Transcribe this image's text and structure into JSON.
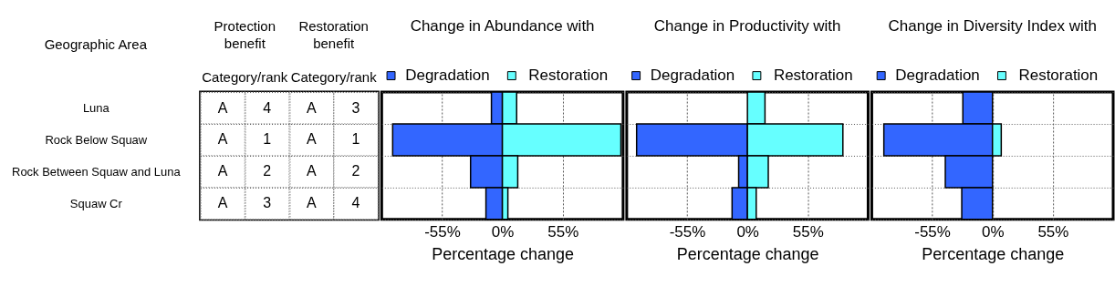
{
  "chart_data": [
    {
      "type": "heatmap",
      "categories": [
        null,
        null,
        null,
        null
      ],
      "y_categories": [
        "Luna",
        "Rock Below Squaw",
        "Rock Between Squaw and Luna",
        "Squaw Cr"
      ],
      "cells": [
        [
          null,
          null,
          null,
          null
        ],
        [
          null,
          null,
          null,
          null
        ],
        [
          null,
          null,
          null,
          null
        ],
        [
          null,
          null,
          null,
          null
        ]
      ],
      "cell_labels": [
        [
          "A",
          "4",
          "A",
          "3"
        ],
        [
          "A",
          "1",
          "A",
          "1"
        ],
        [
          "A",
          "2",
          "A",
          "2"
        ],
        [
          "A",
          "3",
          "A",
          "4"
        ]
      ],
      "annotations": [
        "Geographic Area",
        "Protection benefit",
        "Category/rank",
        "Restoration benefit",
        "Category/rank"
      ]
    },
    {
      "type": "bar",
      "orientation": "horizontal",
      "stacked": true,
      "title": "Change in Abundance with",
      "legend": "top",
      "xlabel": "Percentage change",
      "categories": [
        null,
        null,
        null,
        null
      ],
      "series": [
        {
          "name": "Degradation",
          "color": "#3366ff",
          "values": [
            -10,
            -100,
            -29,
            -15
          ]
        },
        {
          "name": "Restoration",
          "color": "#66ffff",
          "values": [
            13,
            108,
            14,
            5
          ]
        }
      ],
      "xlim": [
        -110,
        110
      ],
      "xticks": [
        {
          "value": -55,
          "label": "-55%"
        },
        {
          "value": 0,
          "label": "0%"
        },
        {
          "value": 55,
          "label": "55%"
        }
      ],
      "grid": true,
      "tick_labels": "x"
    },
    {
      "type": "bar",
      "orientation": "horizontal",
      "stacked": true,
      "title": "Change in Productivity with",
      "legend": "top",
      "xlabel": "Percentage change",
      "categories": [
        null,
        null,
        null,
        null
      ],
      "series": [
        {
          "name": "Degradation",
          "color": "#3366ff",
          "values": [
            null,
            -101,
            -8,
            -14
          ]
        },
        {
          "name": "Restoration",
          "color": "#66ffff",
          "values": [
            16,
            87,
            19,
            8
          ]
        }
      ],
      "xlim": [
        -110,
        110
      ],
      "xticks": [
        {
          "value": -55,
          "label": "-55%"
        },
        {
          "value": 0,
          "label": "0%"
        },
        {
          "value": 55,
          "label": "55%"
        }
      ],
      "grid": true,
      "tick_labels": "x"
    },
    {
      "type": "bar",
      "orientation": "horizontal",
      "stacked": true,
      "title": "Change in Diversity Index with",
      "legend": "top",
      "xlabel": "Percentage change",
      "categories": [
        null,
        null,
        null,
        null
      ],
      "series": [
        {
          "name": "Degradation",
          "color": "#3366ff",
          "values": [
            -27,
            -99,
            -43,
            -28
          ]
        },
        {
          "name": "Restoration",
          "color": "#66ffff",
          "values": [
            null,
            8,
            null,
            null
          ]
        }
      ],
      "xlim": [
        -110,
        110
      ],
      "xticks": [
        {
          "value": -55,
          "label": "-55%"
        },
        {
          "value": 0,
          "label": "0%"
        },
        {
          "value": 55,
          "label": "55%"
        }
      ],
      "grid": true,
      "tick_labels": "x"
    }
  ]
}
